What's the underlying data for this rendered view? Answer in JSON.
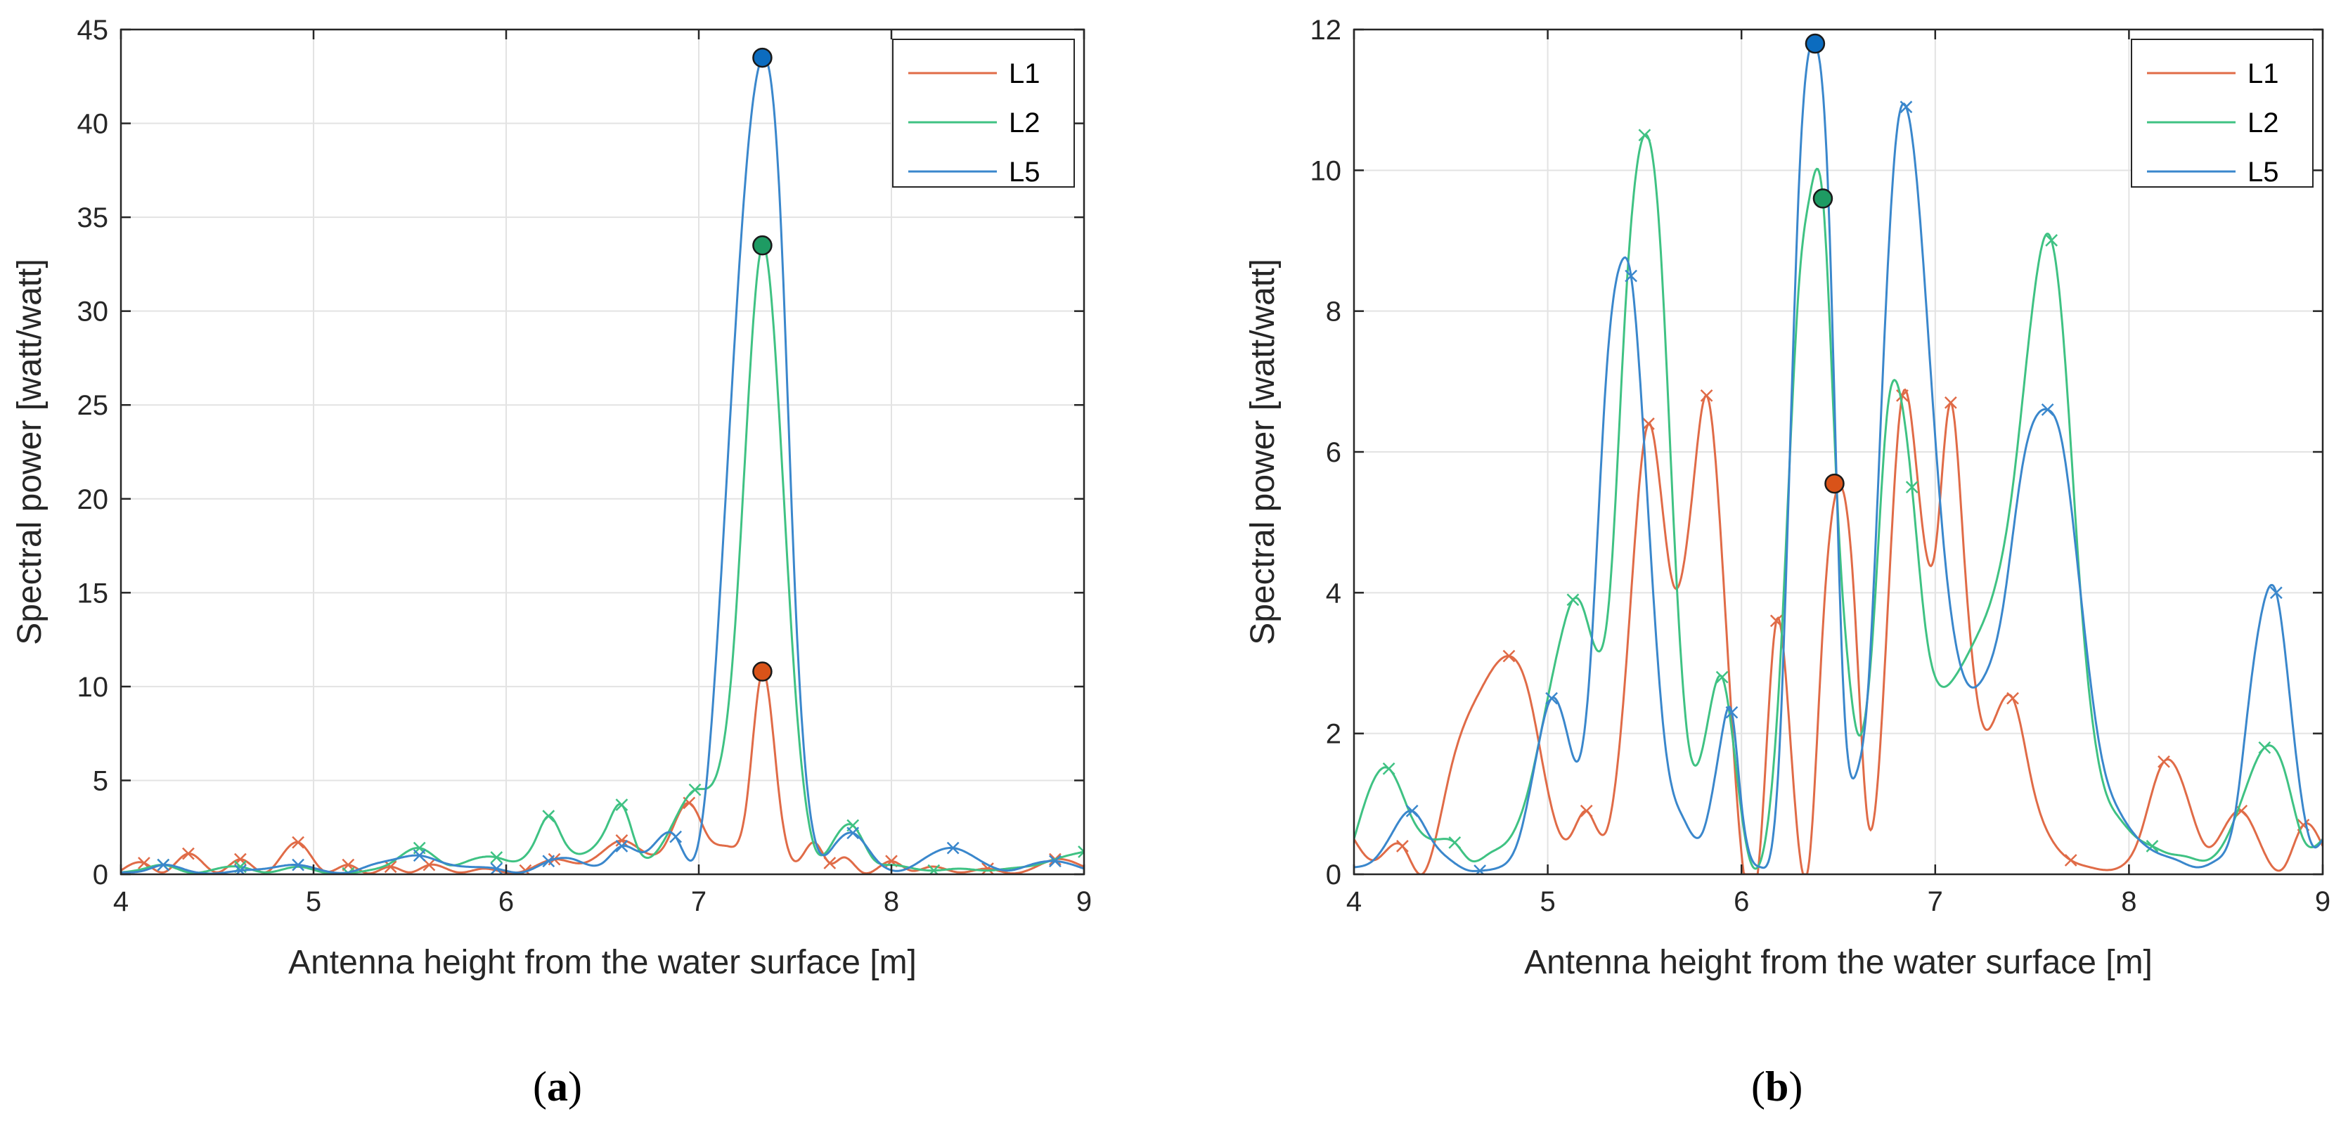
{
  "chart_data": [
    {
      "type": "line",
      "panel_label": "a",
      "xlabel": "Antenna height from the water surface [m]",
      "ylabel": "Spectral power [watt/watt]",
      "xlim": [
        4,
        9
      ],
      "ylim": [
        0,
        45
      ],
      "xticks": [
        4,
        5,
        6,
        7,
        8,
        9
      ],
      "yticks": [
        0,
        5,
        10,
        15,
        20,
        25,
        30,
        35,
        40,
        45
      ],
      "grid": true,
      "legend_position": "top-right",
      "series": [
        {
          "name": "L1",
          "color": "#e06b47",
          "peak_color": "#d95319",
          "x": [
            4.0,
            4.12,
            4.22,
            4.35,
            4.5,
            4.62,
            4.75,
            4.92,
            5.05,
            5.18,
            5.28,
            5.4,
            5.5,
            5.6,
            5.75,
            5.88,
            6.0,
            6.1,
            6.25,
            6.4,
            6.5,
            6.6,
            6.7,
            6.82,
            6.95,
            7.05,
            7.15,
            7.25,
            7.33,
            7.42,
            7.5,
            7.6,
            7.68,
            7.75,
            7.85,
            8.0,
            8.1,
            8.2,
            8.35,
            8.5,
            8.62,
            8.75,
            8.85,
            9.0
          ],
          "y": [
            0.2,
            0.6,
            0.1,
            1.1,
            0.1,
            0.8,
            0.1,
            1.7,
            0.2,
            0.5,
            0.05,
            0.4,
            0.1,
            0.5,
            0.1,
            0.3,
            0.1,
            0.2,
            0.8,
            0.6,
            1.2,
            1.8,
            1.3,
            1.5,
            3.8,
            2.0,
            1.5,
            4.0,
            10.8,
            4.0,
            0.7,
            1.7,
            0.6,
            0.9,
            0.1,
            0.7,
            0.2,
            0.4,
            0.1,
            0.3,
            0.05,
            0.4,
            0.8,
            0.4
          ],
          "markers_x": [
            4.12,
            4.35,
            4.62,
            4.92,
            5.18,
            5.4,
            5.6,
            6.1,
            6.25,
            6.6,
            6.95,
            7.68,
            8.0,
            8.5,
            8.85
          ],
          "peak": [
            7.33,
            10.8
          ]
        },
        {
          "name": "L2",
          "color": "#3fc283",
          "peak_color": "#1e9b63",
          "x": [
            4.0,
            4.12,
            4.22,
            4.35,
            4.5,
            4.62,
            4.75,
            4.92,
            5.05,
            5.18,
            5.28,
            5.4,
            5.55,
            5.7,
            5.8,
            5.95,
            6.05,
            6.15,
            6.22,
            6.3,
            6.42,
            6.52,
            6.6,
            6.68,
            6.78,
            6.88,
            6.98,
            7.08,
            7.18,
            7.25,
            7.33,
            7.42,
            7.5,
            7.6,
            7.7,
            7.8,
            7.9,
            8.0,
            8.12,
            8.22,
            8.35,
            8.5,
            8.6,
            8.75,
            8.88,
            9.0
          ],
          "y": [
            0.1,
            0.3,
            0.5,
            0.1,
            0.3,
            0.4,
            0.1,
            0.4,
            0.1,
            0.05,
            0.2,
            0.6,
            1.4,
            0.5,
            0.7,
            0.9,
            0.7,
            1.8,
            3.1,
            1.8,
            1.2,
            2.5,
            3.7,
            1.5,
            1.2,
            3.0,
            4.5,
            5.0,
            12.0,
            24.0,
            33.5,
            24.0,
            10.0,
            1.5,
            1.8,
            2.6,
            0.9,
            0.5,
            0.3,
            0.2,
            0.3,
            0.2,
            0.3,
            0.5,
            0.9,
            1.2
          ],
          "markers_x": [
            4.22,
            4.62,
            5.18,
            5.55,
            5.95,
            6.22,
            6.6,
            6.98,
            7.8,
            8.22,
            9.0
          ],
          "peak": [
            7.33,
            33.5
          ]
        },
        {
          "name": "L5",
          "color": "#3a87cc",
          "peak_color": "#0c6cbf",
          "x": [
            4.0,
            4.12,
            4.22,
            4.35,
            4.5,
            4.62,
            4.75,
            4.92,
            5.05,
            5.18,
            5.3,
            5.42,
            5.55,
            5.68,
            5.8,
            5.95,
            6.08,
            6.22,
            6.35,
            6.5,
            6.6,
            6.72,
            6.88,
            6.98,
            7.05,
            7.15,
            7.25,
            7.33,
            7.42,
            7.5,
            7.6,
            7.7,
            7.8,
            7.92,
            8.05,
            8.18,
            8.32,
            8.45,
            8.6,
            8.72,
            8.85,
            9.0
          ],
          "y": [
            0.1,
            0.2,
            0.5,
            0.2,
            0.05,
            0.2,
            0.3,
            0.5,
            0.2,
            0.1,
            0.5,
            0.8,
            1.0,
            0.6,
            0.4,
            0.3,
            0.1,
            0.7,
            0.8,
            0.6,
            1.5,
            1.2,
            2.0,
            1.0,
            6.0,
            22.0,
            38.0,
            43.5,
            36.0,
            15.0,
            2.0,
            1.5,
            2.2,
            0.8,
            0.2,
            0.9,
            1.4,
            0.8,
            0.2,
            0.5,
            0.7,
            0.3
          ],
          "markers_x": [
            4.22,
            4.62,
            4.92,
            5.55,
            5.95,
            6.22,
            6.6,
            6.88,
            7.8,
            8.32,
            8.85
          ],
          "peak": [
            7.33,
            43.5
          ]
        }
      ]
    },
    {
      "type": "line",
      "panel_label": "b",
      "xlabel": "Antenna height from the water surface [m]",
      "ylabel": "Spectral power [watt/watt]",
      "xlim": [
        4,
        9
      ],
      "ylim": [
        0,
        12
      ],
      "xticks": [
        4,
        5,
        6,
        7,
        8,
        9
      ],
      "yticks": [
        0,
        2,
        4,
        6,
        8,
        10,
        12
      ],
      "grid": true,
      "legend_position": "top-right",
      "series": [
        {
          "name": "L1",
          "color": "#e06b47",
          "peak_color": "#d95319",
          "x": [
            4.0,
            4.1,
            4.25,
            4.35,
            4.5,
            4.65,
            4.8,
            4.9,
            5.0,
            5.1,
            5.2,
            5.3,
            5.4,
            5.52,
            5.6,
            5.65,
            5.75,
            5.82,
            5.9,
            6.0,
            6.1,
            6.18,
            6.25,
            6.35,
            6.42,
            6.5,
            6.58,
            6.65,
            6.75,
            6.83,
            6.92,
            7.0,
            7.08,
            7.15,
            7.25,
            7.32,
            7.4,
            7.5,
            7.6,
            7.7,
            7.8,
            7.95,
            8.05,
            8.18,
            8.3,
            8.4,
            8.5,
            8.58,
            8.7,
            8.8,
            8.9,
            9.0
          ],
          "y": [
            0.5,
            0.2,
            0.4,
            0.0,
            1.5,
            2.6,
            3.1,
            2.6,
            1.2,
            0.5,
            0.9,
            0.6,
            2.8,
            6.4,
            5.0,
            4.1,
            5.5,
            6.8,
            4.5,
            0.3,
            0.5,
            3.6,
            2.0,
            0.2,
            3.5,
            5.5,
            4.0,
            0.8,
            3.5,
            6.8,
            5.3,
            4.6,
            6.7,
            4.5,
            2.1,
            2.3,
            2.5,
            1.3,
            0.5,
            0.2,
            0.1,
            0.1,
            0.5,
            1.6,
            1.1,
            0.4,
            0.7,
            0.9,
            0.3,
            0.1,
            0.7,
            0.4
          ],
          "markers_x": [
            4.25,
            4.8,
            5.2,
            5.52,
            5.82,
            6.18,
            6.83,
            7.08,
            7.4,
            7.7,
            8.18,
            8.58,
            8.9
          ],
          "peak": [
            6.48,
            5.55
          ]
        },
        {
          "name": "L2",
          "color": "#3fc283",
          "peak_color": "#1e9b63",
          "x": [
            4.0,
            4.08,
            4.18,
            4.3,
            4.4,
            4.52,
            4.6,
            4.7,
            4.8,
            4.9,
            5.0,
            5.08,
            5.13,
            5.18,
            5.25,
            5.32,
            5.4,
            5.5,
            5.58,
            5.65,
            5.72,
            5.8,
            5.9,
            5.96,
            6.02,
            6.1,
            6.2,
            6.3,
            6.35,
            6.42,
            6.5,
            6.55,
            6.6,
            6.68,
            6.75,
            6.82,
            6.88,
            6.95,
            7.02,
            7.1,
            7.2,
            7.3,
            7.4,
            7.5,
            7.58,
            7.65,
            7.75,
            7.85,
            7.95,
            8.05,
            8.12,
            8.2,
            8.3,
            8.4,
            8.5,
            8.6,
            8.7,
            8.8,
            8.9,
            9.0
          ],
          "y": [
            0.5,
            1.2,
            1.5,
            0.8,
            0.5,
            0.45,
            0.2,
            0.3,
            0.5,
            1.2,
            2.5,
            3.5,
            3.9,
            3.8,
            3.2,
            4.0,
            8.0,
            10.5,
            9.0,
            5.0,
            2.0,
            1.8,
            2.8,
            1.8,
            0.5,
            0.2,
            3.0,
            8.5,
            9.6,
            9.6,
            5.0,
            3.0,
            2.0,
            3.5,
            6.5,
            6.8,
            5.5,
            3.5,
            2.7,
            2.8,
            3.3,
            4.0,
            5.5,
            8.0,
            9.1,
            8.0,
            4.0,
            1.5,
            0.8,
            0.5,
            0.4,
            0.3,
            0.25,
            0.2,
            0.5,
            1.2,
            1.8,
            1.5,
            0.5,
            0.5
          ],
          "markers_x": [
            4.18,
            4.52,
            5.13,
            5.5,
            5.9,
            6.88,
            7.6,
            8.12,
            8.7
          ],
          "peak": [
            6.42,
            9.6
          ]
        },
        {
          "name": "L5",
          "color": "#3a87cc",
          "peak_color": "#0c6cbf",
          "x": [
            4.0,
            4.1,
            4.2,
            4.3,
            4.4,
            4.5,
            4.6,
            4.65,
            4.75,
            4.85,
            4.95,
            5.02,
            5.1,
            5.15,
            5.22,
            5.3,
            5.38,
            5.43,
            5.5,
            5.6,
            5.7,
            5.8,
            5.9,
            5.95,
            6.0,
            6.1,
            6.2,
            6.3,
            6.38,
            6.45,
            6.52,
            6.6,
            6.65,
            6.72,
            6.8,
            6.85,
            6.9,
            6.98,
            7.05,
            7.15,
            7.25,
            7.35,
            7.45,
            7.52,
            7.58,
            7.65,
            7.75,
            7.85,
            7.95,
            8.05,
            8.15,
            8.25,
            8.35,
            8.45,
            8.55,
            8.62,
            8.7,
            8.76,
            8.85,
            8.95,
            9.0
          ],
          "y": [
            0.1,
            0.2,
            0.6,
            0.9,
            0.5,
            0.2,
            0.05,
            0.05,
            0.1,
            0.5,
            1.8,
            2.5,
            2.0,
            1.6,
            3.0,
            7.0,
            8.7,
            8.5,
            6.0,
            2.0,
            0.8,
            0.6,
            2.0,
            2.3,
            1.0,
            0.1,
            2.0,
            10.0,
            11.8,
            9.5,
            3.0,
            1.5,
            2.5,
            6.5,
            10.5,
            10.9,
            10.0,
            7.0,
            4.5,
            2.8,
            2.8,
            3.8,
            5.8,
            6.5,
            6.6,
            6.2,
            4.0,
            1.8,
            0.9,
            0.5,
            0.3,
            0.2,
            0.1,
            0.2,
            0.9,
            2.5,
            3.9,
            4.0,
            2.0,
            0.4,
            0.5
          ],
          "markers_x": [
            4.3,
            4.65,
            5.02,
            5.43,
            5.95,
            6.85,
            7.58,
            8.76
          ],
          "peak": [
            6.38,
            11.8
          ]
        }
      ]
    }
  ]
}
